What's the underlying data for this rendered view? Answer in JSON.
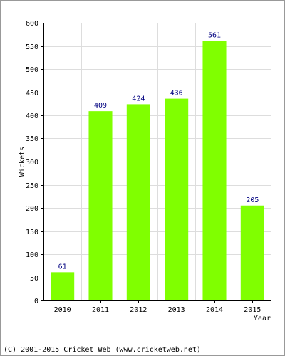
{
  "footer": {
    "copyright": "(C) 2001-2015 Cricket Web (www.cricketweb.net)"
  },
  "chart_data": {
    "type": "bar",
    "title": "",
    "xlabel": "Year",
    "ylabel": "Wickets",
    "categories": [
      "2010",
      "2011",
      "2012",
      "2013",
      "2014",
      "2015"
    ],
    "values": [
      61,
      409,
      424,
      436,
      561,
      205
    ],
    "ylim": [
      0,
      600
    ],
    "yticks": [
      0,
      50,
      100,
      150,
      200,
      250,
      300,
      350,
      400,
      450,
      500,
      550,
      600
    ],
    "grid": true,
    "legend": "none",
    "bar_color": "#80ff00",
    "value_label_color": "#000080",
    "grid_color": "#dddddd"
  }
}
